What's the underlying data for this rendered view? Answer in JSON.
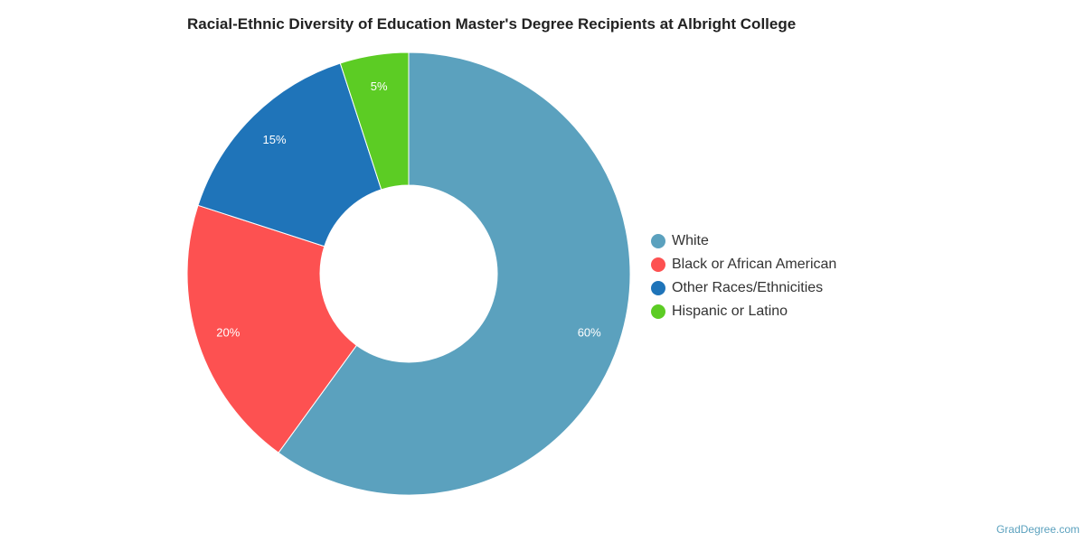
{
  "chart_data": {
    "type": "pie",
    "title": "Racial-Ethnic Diversity of Education Master's Degree Recipients at Albright College",
    "donut": true,
    "legend_position": "right",
    "slices": [
      {
        "label": "White",
        "value": 60,
        "display": "60%",
        "color": "#5ba1be"
      },
      {
        "label": "Black or African American",
        "value": 20,
        "display": "20%",
        "color": "#fd5151"
      },
      {
        "label": "Other Races/Ethnicities",
        "value": 15,
        "display": "15%",
        "color": "#1f74b9"
      },
      {
        "label": "Hispanic or Latino",
        "value": 5,
        "display": "5%",
        "color": "#5ccc24"
      }
    ],
    "slice_order_clockwise_from_top": [
      "White",
      "Black or African American",
      "Other Races/Ethnicities",
      "Hispanic or Latino"
    ]
  },
  "credit": "GradDegree.com"
}
